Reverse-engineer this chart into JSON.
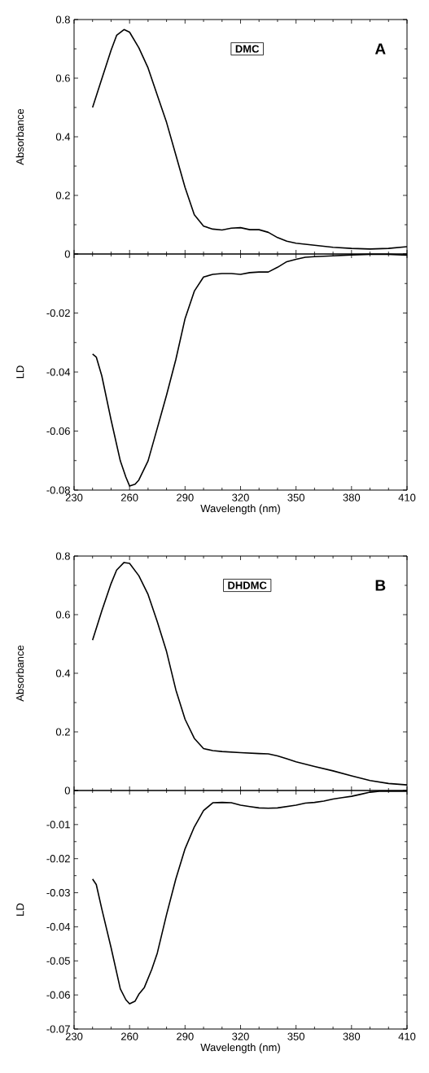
{
  "chart_data": [
    {
      "type": "line",
      "ylabel": "Absorbance",
      "annotations": [
        "DMC",
        "A"
      ],
      "tick_labels": "y",
      "xlim": [
        230,
        410
      ],
      "xticks": [
        230,
        260,
        290,
        320,
        350,
        380,
        410
      ],
      "ylim": [
        0,
        0.8
      ],
      "yticks": [
        0,
        0.2,
        0.4,
        0.6,
        0.8
      ],
      "x": [
        240,
        245,
        250,
        253,
        257,
        260,
        265,
        270,
        275,
        280,
        285,
        290,
        295,
        300,
        305,
        310,
        315,
        320,
        325,
        330,
        335,
        340,
        345,
        350,
        360,
        370,
        380,
        390,
        400,
        410
      ],
      "series": [
        {
          "color": "#000000",
          "values": [
            0.5,
            0.598,
            0.695,
            0.746,
            0.766,
            0.757,
            0.704,
            0.635,
            0.542,
            0.449,
            0.338,
            0.227,
            0.134,
            0.095,
            0.085,
            0.082,
            0.088,
            0.09,
            0.083,
            0.083,
            0.074,
            0.056,
            0.044,
            0.037,
            0.03,
            0.023,
            0.019,
            0.017,
            0.019,
            0.025
          ]
        }
      ]
    },
    {
      "type": "line",
      "xlabel": "Wavelength (nm)",
      "ylabel": "LD",
      "xlim": [
        230,
        410
      ],
      "xticks": [
        230,
        260,
        290,
        320,
        350,
        380,
        410
      ],
      "ylim": [
        -0.08,
        0
      ],
      "yticks": [
        -0.08,
        -0.06,
        -0.04,
        -0.02,
        {
          "value": 0,
          "label": null
        }
      ],
      "x": [
        240,
        242,
        245,
        250,
        255,
        258,
        260,
        263,
        265,
        270,
        275,
        280,
        285,
        290,
        295,
        300,
        305,
        310,
        315,
        320,
        325,
        330,
        335,
        340,
        345,
        350,
        355,
        360,
        370,
        380,
        390,
        400,
        410
      ],
      "series": [
        {
          "color": "#000000",
          "values": [
            -0.0339,
            -0.0349,
            -0.0413,
            -0.0562,
            -0.0701,
            -0.0756,
            -0.0786,
            -0.078,
            -0.0766,
            -0.0701,
            -0.059,
            -0.0478,
            -0.0358,
            -0.0219,
            -0.0126,
            -0.0078,
            -0.0069,
            -0.0066,
            -0.0066,
            -0.0069,
            -0.0063,
            -0.0061,
            -0.0061,
            -0.0045,
            -0.0026,
            -0.0018,
            -0.0011,
            -0.0009,
            -0.0006,
            -0.0003,
            -0.0001,
            -0.0001,
            -0.0004
          ]
        }
      ]
    },
    {
      "type": "line",
      "ylabel": "Absorbance",
      "annotations": [
        "DHDMC",
        "B"
      ],
      "tick_labels": "y",
      "xlim": [
        230,
        410
      ],
      "xticks": [
        230,
        260,
        290,
        320,
        350,
        380,
        410
      ],
      "ylim": [
        0,
        0.8
      ],
      "yticks": [
        0,
        0.2,
        0.4,
        0.6,
        0.8
      ],
      "x": [
        240,
        245,
        250,
        253,
        257,
        260,
        265,
        270,
        275,
        280,
        285,
        290,
        295,
        300,
        305,
        310,
        320,
        330,
        335,
        340,
        345,
        350,
        360,
        370,
        380,
        390,
        400,
        410
      ],
      "series": [
        {
          "color": "#000000",
          "values": [
            0.513,
            0.613,
            0.706,
            0.752,
            0.778,
            0.775,
            0.733,
            0.669,
            0.576,
            0.474,
            0.344,
            0.243,
            0.178,
            0.143,
            0.136,
            0.133,
            0.129,
            0.126,
            0.125,
            0.118,
            0.108,
            0.098,
            0.082,
            0.067,
            0.05,
            0.034,
            0.024,
            0.019
          ]
        }
      ]
    },
    {
      "type": "line",
      "xlabel": "Wavelength (nm)",
      "ylabel": "LD",
      "xlim": [
        230,
        410
      ],
      "xticks": [
        230,
        260,
        290,
        320,
        350,
        380,
        410
      ],
      "ylim": [
        -0.07,
        0
      ],
      "yticks": [
        -0.07,
        -0.06,
        -0.05,
        -0.04,
        -0.03,
        -0.02,
        -0.01,
        {
          "value": 0,
          "label": null
        }
      ],
      "x": [
        240,
        242,
        245,
        250,
        255,
        258,
        260,
        263,
        265,
        268,
        272,
        275,
        280,
        285,
        290,
        295,
        300,
        305,
        310,
        315,
        320,
        325,
        330,
        335,
        340,
        345,
        350,
        355,
        360,
        365,
        370,
        375,
        380,
        385,
        390,
        395,
        400,
        410
      ],
      "series": [
        {
          "color": "#000000",
          "values": [
            -0.026,
            -0.0276,
            -0.0348,
            -0.0461,
            -0.0582,
            -0.0614,
            -0.0626,
            -0.0618,
            -0.0598,
            -0.0578,
            -0.0525,
            -0.0477,
            -0.0364,
            -0.026,
            -0.0171,
            -0.0107,
            -0.0059,
            -0.0036,
            -0.0035,
            -0.0036,
            -0.0043,
            -0.0047,
            -0.0051,
            -0.0052,
            -0.0051,
            -0.0047,
            -0.0043,
            -0.0037,
            -0.0035,
            -0.0031,
            -0.0025,
            -0.0021,
            -0.0017,
            -0.0011,
            -0.0005,
            -0.0002,
            -0.0002,
            -0.0002
          ]
        }
      ]
    }
  ]
}
